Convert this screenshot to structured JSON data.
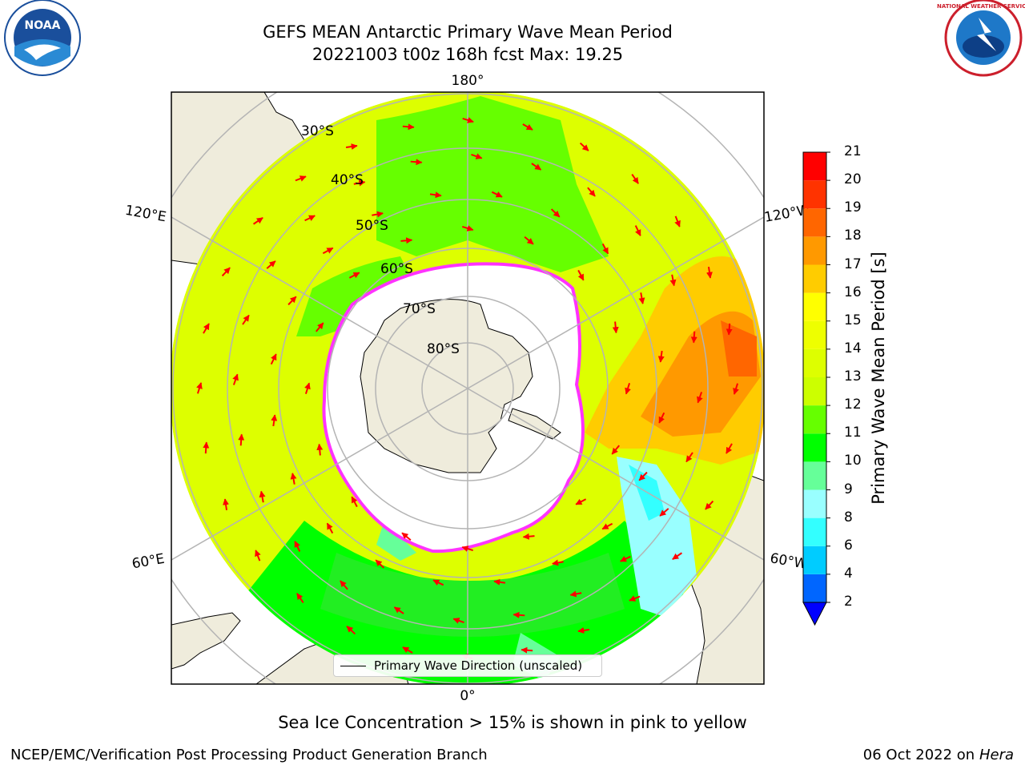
{
  "title": {
    "line1": "GEFS MEAN Antarctic Primary Wave Mean Period",
    "line2": "20221003 t00z 168h fcst   Max: 19.25"
  },
  "map": {
    "meridian_labels": {
      "top": "180°",
      "bottom": "0°",
      "left_upper": "120°E",
      "left_lower": "60°E",
      "right_upper": "120°W",
      "right_lower": "60°W"
    },
    "latitude_labels": [
      "30°S",
      "40°S",
      "50°S",
      "60°S",
      "70°S",
      "80°S"
    ],
    "legend": "Primary Wave Direction (unscaled)",
    "colors": {
      "land": "#efecdc",
      "ice_edge": "#ff33ff",
      "arrow": "#ff0000",
      "grid": "#b4b4b4",
      "ocean_default": "#ddff00"
    }
  },
  "colorbar": {
    "title": "Primary Wave Mean Period [s]",
    "tick_labels": [
      "2",
      "4",
      "6",
      "8",
      "9",
      "10",
      "11",
      "12",
      "13",
      "14",
      "15",
      "16",
      "17",
      "18",
      "19",
      "20",
      "21"
    ],
    "colors": [
      "#0066ff",
      "#00ccff",
      "#33ffff",
      "#99ffff",
      "#66ff99",
      "#00ff00",
      "#66ff00",
      "#ccff00",
      "#ddff00",
      "#eeff00",
      "#ffff00",
      "#ffcc00",
      "#ff9900",
      "#ff6600",
      "#ff3300",
      "#ff0000"
    ],
    "under_color": "#0000ff"
  },
  "footer": {
    "note": "Sea Ice Concentration > 15% is shown in pink to yellow",
    "left": "NCEP/EMC/Verification Post Processing Product Generation Branch",
    "right_date": "06 Oct 2022 on",
    "right_host": "Hera"
  },
  "logos": {
    "noaa": "NOAA",
    "nws": "NATIONAL WEATHER SERVICE"
  }
}
